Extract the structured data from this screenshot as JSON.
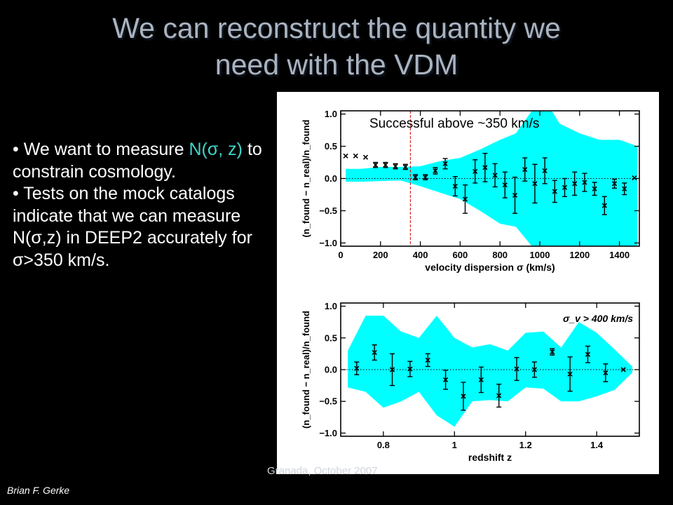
{
  "slide": {
    "title_line1": "We can reconstruct the quantity we",
    "title_line2": "need with the VDM",
    "bullet1_a": "We want to measure",
    "bullet1_hl": "N(σ, z)",
    "bullet1_b": " to constrain cosmology.",
    "bullet2": "Tests on the mock catalogs indicate that we can measure N(σ,z) in DEEP2 accurately for σ>350 km/s.",
    "author": "Brian F. Gerke",
    "venue": "Granada, October 2007"
  },
  "colors": {
    "band": "#00ffff",
    "highlight": "#3fd5c8",
    "threshold_line": "#cc0000"
  },
  "chart_data": [
    {
      "type": "scatter",
      "annotation": "Successful above ~350 km/s",
      "xlabel": "velocity dispersion σ (km/s)",
      "ylabel": "(n_found − n_real)/n_found",
      "xlim": [
        0,
        1500
      ],
      "ylim": [
        -1.05,
        1.05
      ],
      "xticks": [
        0,
        200,
        400,
        600,
        800,
        1000,
        1200,
        1400
      ],
      "yticks": [
        -1.0,
        -0.5,
        0.0,
        0.5,
        1.0
      ],
      "ytick_labels": [
        "−1.0",
        "−0.5",
        "0.0",
        "0.5",
        "1.0"
      ],
      "threshold_x": 350,
      "band": {
        "x": [
          25,
          100,
          200,
          300,
          400,
          500,
          600,
          700,
          800,
          880,
          960,
          1060,
          1100,
          1200,
          1300,
          1400,
          1490
        ],
        "upper": [
          0.15,
          0.15,
          0.18,
          0.18,
          0.19,
          0.27,
          0.32,
          0.45,
          0.6,
          0.7,
          1.05,
          1.05,
          0.85,
          0.7,
          0.6,
          0.6,
          0.5
        ],
        "lower": [
          -0.05,
          -0.05,
          -0.04,
          -0.03,
          -0.12,
          -0.22,
          -0.32,
          -0.5,
          -0.7,
          -0.75,
          -1.05,
          -1.05,
          -1.05,
          -1.05,
          -1.05,
          -1.05,
          -1.05
        ]
      },
      "points": {
        "x": [
          25,
          75,
          125,
          175,
          225,
          275,
          325,
          375,
          425,
          475,
          525,
          575,
          625,
          675,
          725,
          775,
          825,
          875,
          925,
          975,
          1025,
          1075,
          1125,
          1175,
          1225,
          1275,
          1325,
          1375,
          1425,
          1475
        ],
        "y": [
          0.35,
          0.35,
          0.33,
          0.21,
          0.21,
          0.19,
          0.18,
          0.02,
          0.02,
          0.12,
          0.23,
          -0.12,
          -0.32,
          0.11,
          0.17,
          0.05,
          -0.1,
          -0.26,
          0.14,
          -0.08,
          0.12,
          -0.2,
          -0.14,
          -0.08,
          -0.06,
          -0.16,
          -0.42,
          -0.08,
          -0.16,
          0.01
        ],
        "err": [
          0,
          0,
          0,
          0.04,
          0.04,
          0.04,
          0.04,
          0.04,
          0.04,
          0.05,
          0.08,
          0.15,
          0.22,
          0.18,
          0.22,
          0.18,
          0.2,
          0.28,
          0.18,
          0.3,
          0.2,
          0.17,
          0.14,
          0.18,
          0.14,
          0.1,
          0.14,
          0.07,
          0.09,
          0
        ]
      }
    },
    {
      "type": "scatter",
      "annotation": "σ_v > 400 km/s",
      "xlabel": "redshift z",
      "ylabel": "(n_found − n_real)/n_found",
      "xlim": [
        0.68,
        1.52
      ],
      "ylim": [
        -1.05,
        1.05
      ],
      "xticks": [
        0.8,
        1.0,
        1.2,
        1.4
      ],
      "yticks": [
        -1.0,
        -0.5,
        0.0,
        0.5,
        1.0
      ],
      "ytick_labels": [
        "−1.0",
        "−0.5",
        "0.0",
        "0.5",
        "1.0"
      ],
      "band": {
        "x": [
          0.7,
          0.75,
          0.8,
          0.85,
          0.9,
          0.95,
          1.0,
          1.05,
          1.1,
          1.15,
          1.2,
          1.25,
          1.3,
          1.35,
          1.4,
          1.45,
          1.5
        ],
        "upper": [
          0.3,
          0.85,
          0.85,
          0.6,
          0.5,
          0.85,
          0.5,
          0.35,
          0.4,
          0.3,
          0.58,
          0.6,
          0.35,
          0.75,
          0.58,
          0.32,
          0.05
        ],
        "lower": [
          -0.28,
          -0.35,
          -0.6,
          -0.5,
          -0.35,
          -0.72,
          -0.9,
          -0.5,
          -0.48,
          -0.5,
          -0.28,
          -0.3,
          -0.5,
          -0.5,
          -0.42,
          -0.32,
          -0.05
        ]
      },
      "points": {
        "x": [
          0.725,
          0.775,
          0.825,
          0.875,
          0.925,
          0.975,
          1.025,
          1.075,
          1.125,
          1.175,
          1.225,
          1.275,
          1.325,
          1.375,
          1.425,
          1.475
        ],
        "y": [
          0.02,
          0.27,
          0.0,
          0.01,
          0.15,
          -0.16,
          -0.42,
          -0.16,
          -0.41,
          0.01,
          0.0,
          0.28,
          -0.07,
          0.24,
          -0.05,
          0.0
        ],
        "err": [
          0.1,
          0.12,
          0.25,
          0.12,
          0.1,
          0.15,
          0.22,
          0.2,
          0.18,
          0.18,
          0.12,
          0.05,
          0.27,
          0.13,
          0.14,
          0
        ]
      }
    }
  ]
}
